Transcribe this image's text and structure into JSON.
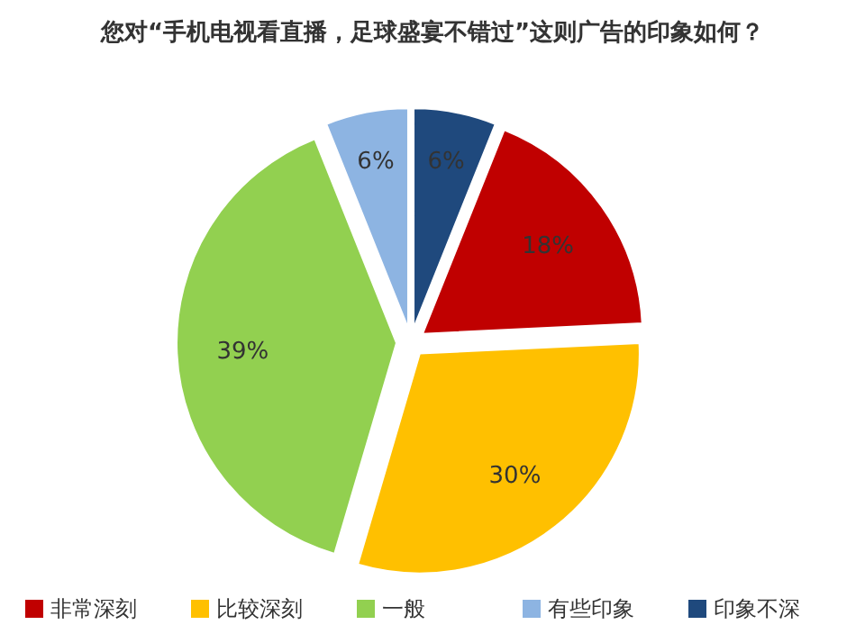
{
  "chart_data": {
    "type": "pie",
    "title": "您对“手机电视看直播，足球盛宴不错过”这则广告的印象如何？",
    "categories": [
      "非常深刻",
      "比较深刻",
      "一般",
      "有些印象",
      "印象不深"
    ],
    "values": [
      18,
      30,
      39,
      6,
      6
    ],
    "colors": [
      "#c00000",
      "#ffc000",
      "#92d050",
      "#8db4e2",
      "#1f497d"
    ],
    "value_labels": [
      "18%",
      "30%",
      "39%",
      "6%",
      "6%"
    ],
    "legend": "bottom"
  }
}
